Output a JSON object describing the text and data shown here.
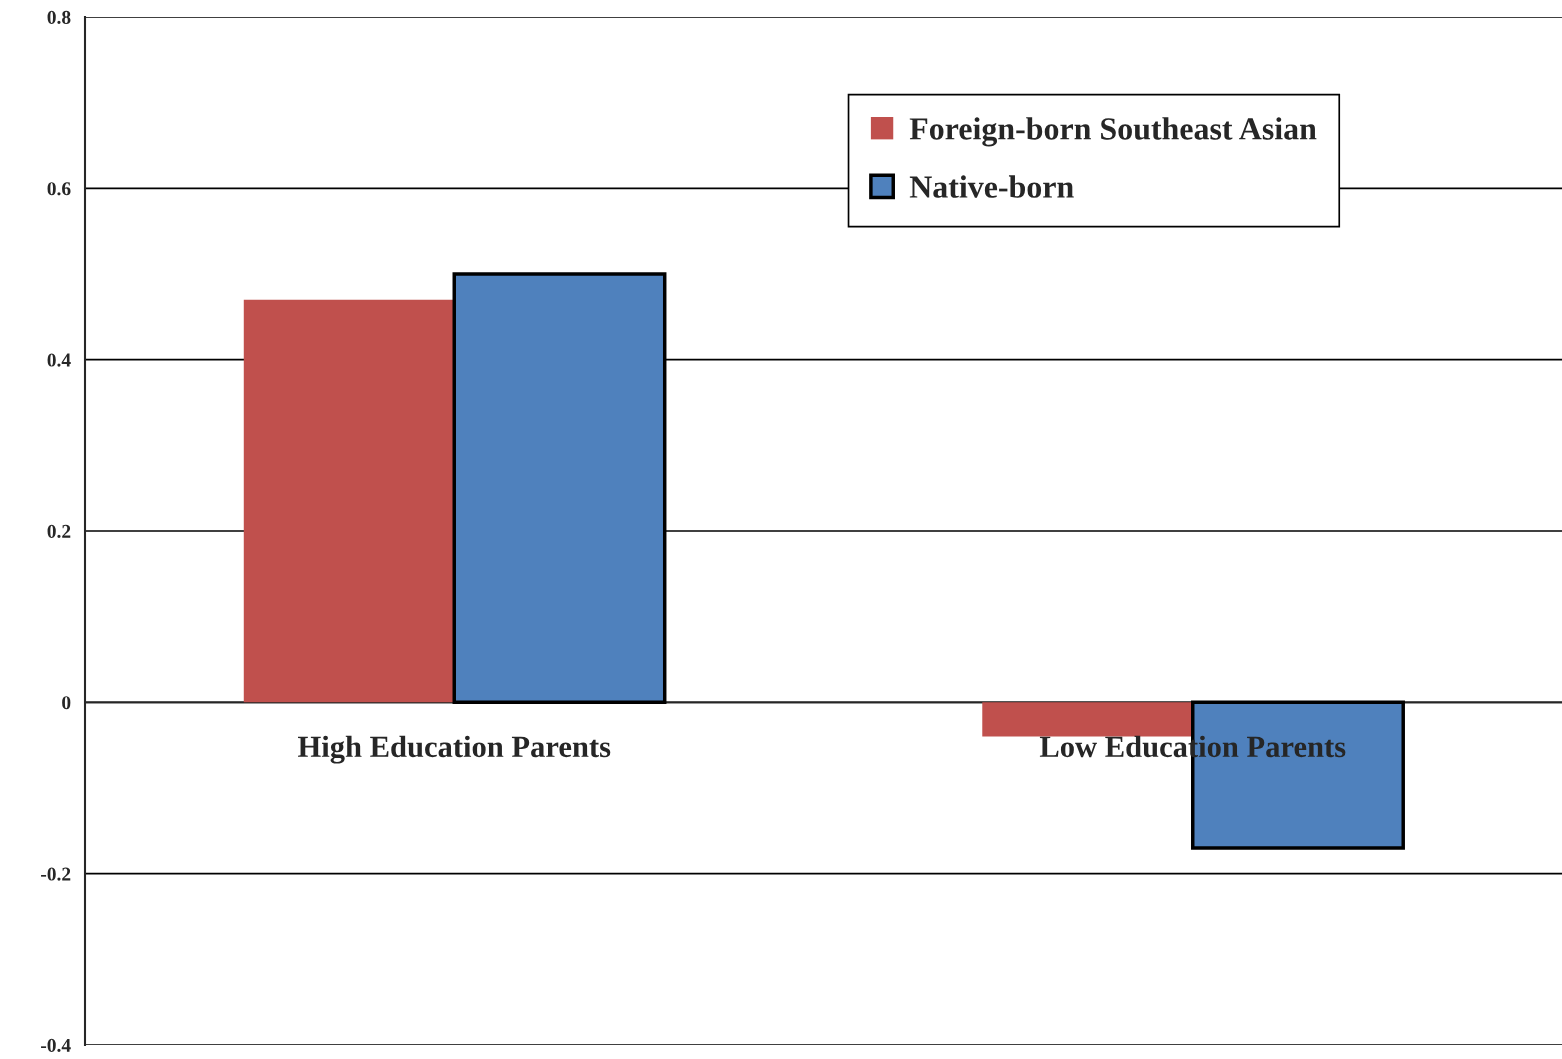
{
  "chart_data": {
    "type": "bar",
    "categories": [
      "High Education Parents",
      "Low Education Parents"
    ],
    "series": [
      {
        "name": "Foreign-born Southeast Asian",
        "color": "#c0504d",
        "values": [
          0.47,
          -0.04
        ]
      },
      {
        "name": "Native-born",
        "color": "#4f81bd",
        "values": [
          0.5,
          -0.17
        ]
      }
    ],
    "ylim": [
      -0.4,
      0.8
    ],
    "yticks": [
      -0.4,
      -0.2,
      0,
      0.2,
      0.4,
      0.6,
      0.8
    ],
    "grid": "y",
    "legend": "top right"
  }
}
